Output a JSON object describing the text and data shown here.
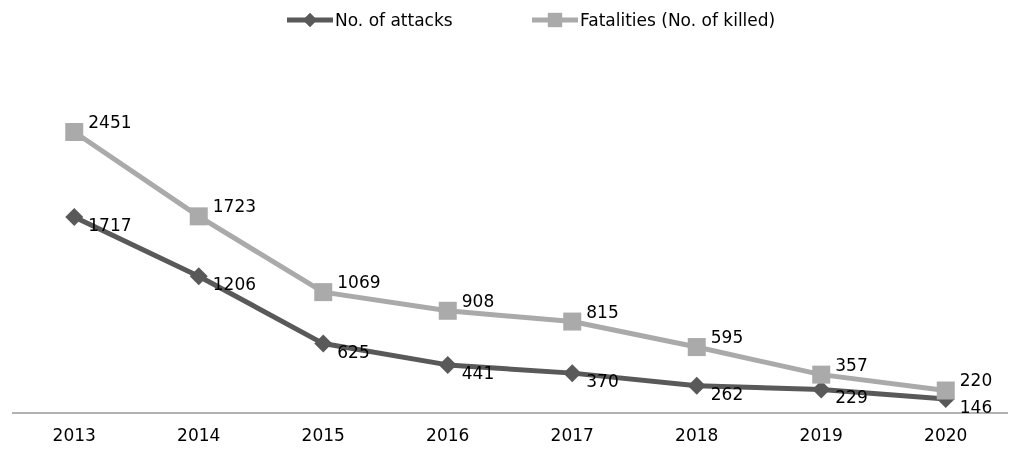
{
  "chart_data": {
    "type": "line",
    "categories": [
      "2013",
      "2014",
      "2015",
      "2016",
      "2017",
      "2018",
      "2019",
      "2020"
    ],
    "series": [
      {
        "name": "No. of attacks",
        "color": "#595959",
        "marker": "diamond",
        "values": [
          1717,
          1206,
          625,
          441,
          370,
          262,
          229,
          146
        ]
      },
      {
        "name": "Fatalities (No. of killed)",
        "color": "#aaaaaa",
        "marker": "square",
        "values": [
          2451,
          1723,
          1069,
          908,
          815,
          595,
          357,
          220
        ]
      }
    ],
    "data_labels": true,
    "legend": "top",
    "grid": false,
    "tick_labels": "x"
  }
}
